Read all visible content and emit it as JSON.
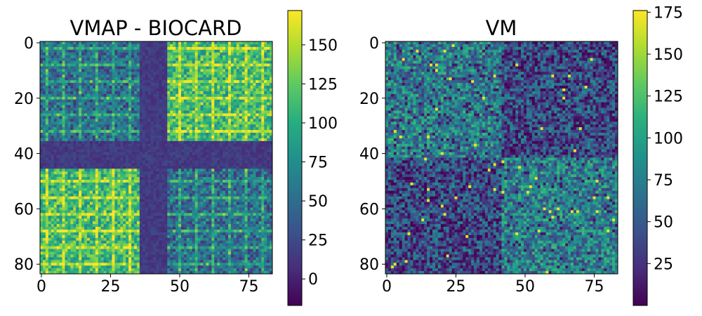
{
  "chart_data": [
    {
      "type": "heatmap",
      "title": "VMAP - BIOCARD",
      "rows": 84,
      "cols": 84,
      "colormap": "viridis",
      "xlim": [
        0,
        83
      ],
      "ylim": [
        83,
        0
      ],
      "xticks": [
        0,
        25,
        50,
        75
      ],
      "yticks": [
        0,
        20,
        40,
        60,
        80
      ],
      "colorbar": {
        "range": [
          -17,
          172
        ],
        "ticks": [
          0,
          25,
          50,
          75,
          100,
          125,
          150
        ]
      },
      "structure": {
        "block_boundary": 42,
        "diagonal_blocks_mean": 55,
        "off_diagonal_blocks_mean": 115,
        "separator_rows_cols": [
          36,
          37,
          38,
          39,
          40,
          41,
          42,
          43,
          44,
          45
        ],
        "separator_mean": 15
      }
    },
    {
      "type": "heatmap",
      "title": "VM",
      "rows": 84,
      "cols": 84,
      "colormap": "viridis",
      "xlim": [
        0,
        83
      ],
      "ylim": [
        83,
        0
      ],
      "xticks": [
        0,
        25,
        50,
        75
      ],
      "yticks": [
        0,
        20,
        40,
        60,
        80
      ],
      "colorbar": {
        "range": [
          0,
          176
        ],
        "ticks": [
          25,
          50,
          75,
          100,
          125,
          150,
          175
        ]
      },
      "structure": {
        "block_boundary": 42,
        "diagonal_blocks_mean": 75,
        "off_diagonal_blocks_mean": 40,
        "noise": "high"
      }
    }
  ]
}
